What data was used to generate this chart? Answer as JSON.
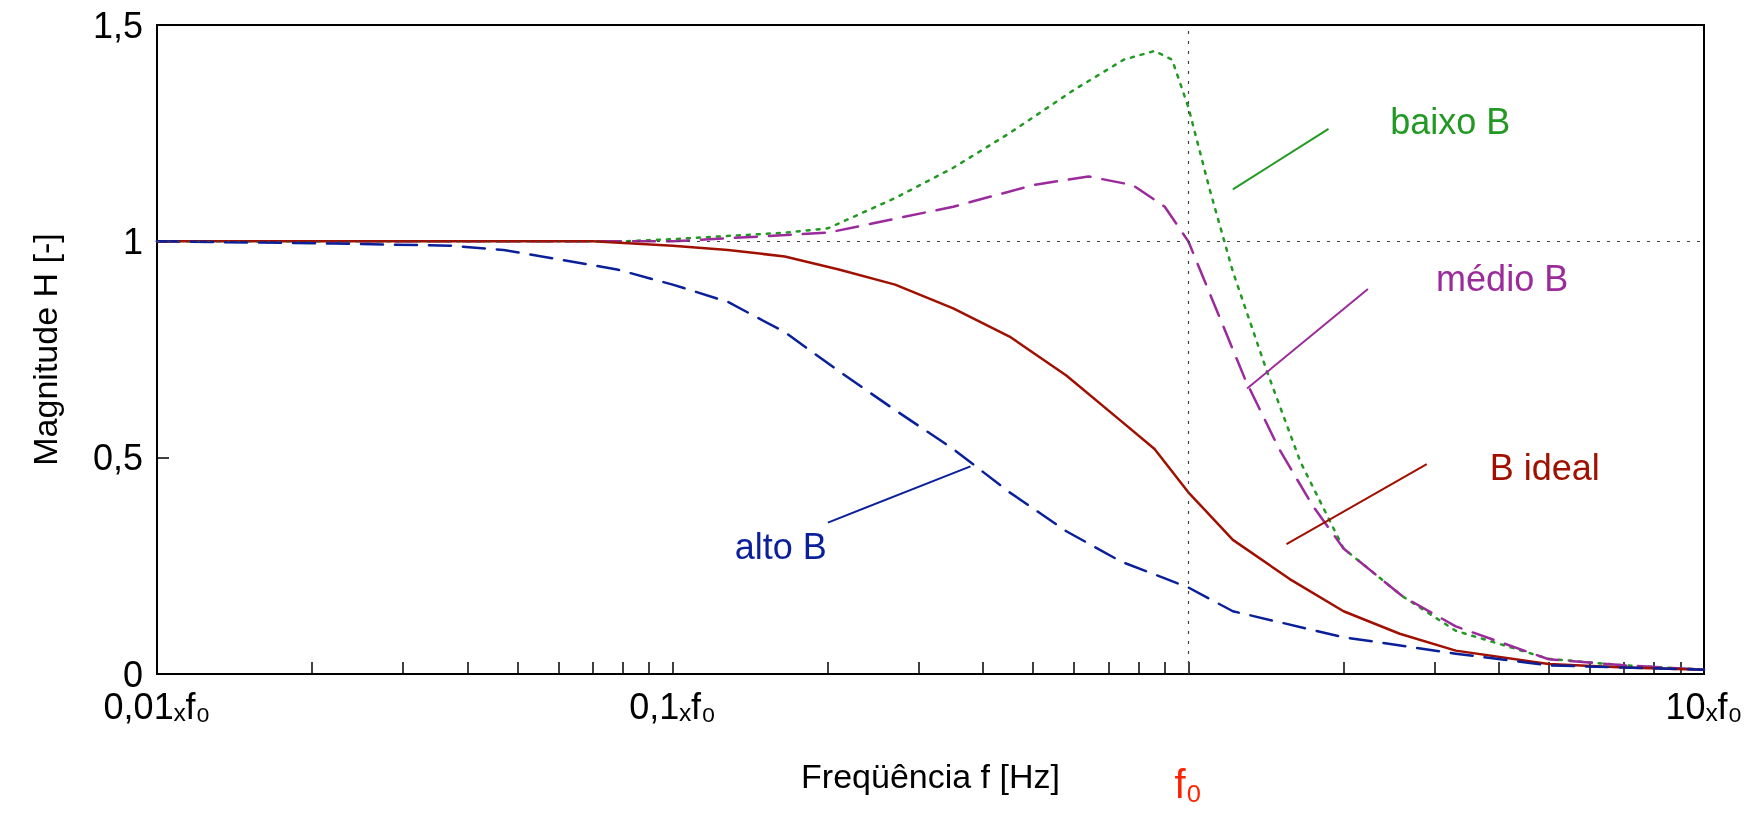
{
  "chart_data": {
    "type": "line",
    "xlabel": "Freqüência f [Hz]",
    "ylabel": "Magnitude H [-]",
    "log": "x",
    "xlim": [
      0.01,
      10
    ],
    "ylim": [
      0,
      1.5
    ],
    "xticks": [
      {
        "value": 0.01,
        "label": "0,01ₓf₀"
      },
      {
        "value": 0.02,
        "label": null
      },
      {
        "value": 0.03,
        "label": null
      },
      {
        "value": 0.04,
        "label": null
      },
      {
        "value": 0.05,
        "label": null
      },
      {
        "value": 0.06,
        "label": null
      },
      {
        "value": 0.07,
        "label": null
      },
      {
        "value": 0.08,
        "label": null
      },
      {
        "value": 0.09,
        "label": null
      },
      {
        "value": 0.1,
        "label": "0,1ₓf₀"
      },
      {
        "value": 0.2,
        "label": null
      },
      {
        "value": 0.3,
        "label": null
      },
      {
        "value": 0.4,
        "label": null
      },
      {
        "value": 0.5,
        "label": null
      },
      {
        "value": 0.6,
        "label": null
      },
      {
        "value": 0.7,
        "label": null
      },
      {
        "value": 0.8,
        "label": null
      },
      {
        "value": 0.9,
        "label": null
      },
      {
        "value": 1,
        "label": null
      },
      {
        "value": 2,
        "label": null
      },
      {
        "value": 3,
        "label": null
      },
      {
        "value": 4,
        "label": null
      },
      {
        "value": 5,
        "label": null
      },
      {
        "value": 6,
        "label": null
      },
      {
        "value": 7,
        "label": null
      },
      {
        "value": 8,
        "label": null
      },
      {
        "value": 9,
        "label": null
      },
      {
        "value": 10,
        "label": "10ₓf₀"
      }
    ],
    "yticks": [
      {
        "value": 0,
        "label": "0"
      },
      {
        "value": 0.5,
        "label": "0,5"
      },
      {
        "value": 1,
        "label": "1"
      },
      {
        "value": 1.5,
        "label": "1,5"
      }
    ],
    "grid": false,
    "legend": false,
    "marker": "none",
    "ref_lines": [
      {
        "axis": "y",
        "value": 1,
        "color": "#444444",
        "line_style": "dotted"
      },
      {
        "axis": "x",
        "value": 1,
        "label": "f₀",
        "color": "#444444",
        "line_style": "dotted"
      }
    ],
    "series": [
      {
        "name": "baixo B",
        "color": "#229922",
        "line_style": "dotted",
        "x": [
          0.01,
          0.05,
          0.08,
          0.1,
          0.165,
          0.2,
          0.27,
          0.35,
          0.45,
          0.6,
          0.75,
          0.86,
          0.93,
          1,
          1.1,
          1.22,
          1.42,
          1.65,
          2,
          2.6,
          3.3,
          5,
          7,
          10
        ],
        "values": [
          1,
          1,
          1,
          1.005,
          1.02,
          1.03,
          1.1,
          1.17,
          1.25,
          1.35,
          1.42,
          1.44,
          1.42,
          1.31,
          1.12,
          0.93,
          0.7,
          0.49,
          0.29,
          0.18,
          0.1,
          0.035,
          0.02,
          0.01
        ]
      },
      {
        "name": "médio B",
        "color": "#9b2a9b",
        "line_style": "dashed",
        "x": [
          0.01,
          0.05,
          0.1,
          0.2,
          0.35,
          0.5,
          0.64,
          0.78,
          0.9,
          1,
          1.1,
          1.29,
          1.5,
          1.74,
          2,
          2.6,
          3.3,
          5,
          7,
          10
        ],
        "values": [
          1,
          1,
          1.0,
          1.02,
          1.08,
          1.13,
          1.15,
          1.13,
          1.08,
          1.0,
          0.88,
          0.68,
          0.52,
          0.39,
          0.29,
          0.18,
          0.11,
          0.034,
          0.02,
          0.01
        ]
      },
      {
        "name": "B ideal",
        "color": "#a01000",
        "line_style": "solid",
        "x": [
          0.01,
          0.05,
          0.07,
          0.1,
          0.128,
          0.165,
          0.21,
          0.27,
          0.35,
          0.45,
          0.58,
          0.74,
          0.86,
          1,
          1.22,
          1.57,
          2,
          2.57,
          3.3,
          5,
          7,
          10
        ],
        "values": [
          1,
          1,
          1,
          0.99,
          0.98,
          0.965,
          0.935,
          0.9,
          0.845,
          0.78,
          0.69,
          0.585,
          0.52,
          0.42,
          0.31,
          0.22,
          0.145,
          0.093,
          0.054,
          0.023,
          0.015,
          0.01
        ]
      },
      {
        "name": "alto B",
        "color": "#0a1f9a",
        "line_style": "dashed",
        "x": [
          0.01,
          0.022,
          0.037,
          0.047,
          0.078,
          0.1,
          0.128,
          0.165,
          0.21,
          0.27,
          0.35,
          0.45,
          0.58,
          0.74,
          1,
          1.22,
          2,
          3.3,
          5,
          7,
          10
        ],
        "values": [
          1,
          0.995,
          0.99,
          0.98,
          0.935,
          0.9,
          0.86,
          0.79,
          0.7,
          0.61,
          0.52,
          0.42,
          0.33,
          0.26,
          0.2,
          0.145,
          0.085,
          0.047,
          0.02,
          0.015,
          0.01
        ]
      }
    ]
  }
}
